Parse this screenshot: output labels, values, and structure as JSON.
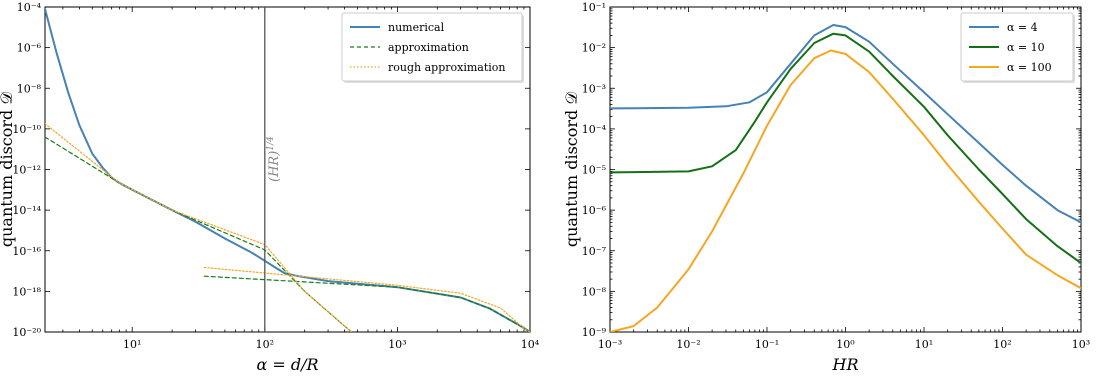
{
  "chart_data": [
    {
      "type": "line",
      "xlabel": "α = d/R",
      "ylabel": "quantum discord 𝒟",
      "xscale": "log",
      "yscale": "log",
      "xlim": [
        2.2,
        10000
      ],
      "ylim": [
        1e-20,
        0.0001
      ],
      "xticks": [
        {
          "value": 10,
          "label": "10¹"
        },
        {
          "value": 100,
          "label": "10²"
        },
        {
          "value": 1000,
          "label": "10³"
        },
        {
          "value": 10000,
          "label": "10⁴"
        }
      ],
      "yticks": [
        {
          "value": 0.0001,
          "label": "10⁻⁴"
        },
        {
          "value": 1e-06,
          "label": "10⁻⁶"
        },
        {
          "value": 1e-08,
          "label": "10⁻⁸"
        },
        {
          "value": 1e-10,
          "label": "10⁻¹⁰"
        },
        {
          "value": 1e-12,
          "label": "10⁻¹²"
        },
        {
          "value": 1e-14,
          "label": "10⁻¹⁴"
        },
        {
          "value": 1e-16,
          "label": "10⁻¹⁶"
        },
        {
          "value": 1e-18,
          "label": "10⁻¹⁸"
        },
        {
          "value": 1e-20,
          "label": "10⁻²⁰"
        }
      ],
      "legend_position": "top-right",
      "vline": {
        "x": 100,
        "label": "(HR)^1/4",
        "color": "#555555"
      },
      "series": [
        {
          "name": "numerical",
          "color": "#4682b4",
          "dash": "solid",
          "width": 2,
          "points": [
            [
              2.2,
              8e-05
            ],
            [
              2.7,
              5e-07
            ],
            [
              3.3,
              6e-09
            ],
            [
              4,
              1.5e-10
            ],
            [
              5,
              6e-12
            ],
            [
              6,
              1.2e-12
            ],
            [
              7,
              4e-13
            ],
            [
              8,
              2.2e-13
            ],
            [
              10,
              1e-13
            ],
            [
              20,
              1e-14
            ],
            [
              30,
              2.7e-15
            ],
            [
              50,
              4e-16
            ],
            [
              80,
              8e-17
            ],
            [
              100,
              3.2e-17
            ],
            [
              120,
              1.5e-17
            ],
            [
              140,
              8e-18
            ],
            [
              170,
              6e-18
            ],
            [
              300,
              3.2e-18
            ],
            [
              1000,
              1.6e-18
            ],
            [
              3000,
              5e-19
            ],
            [
              5000,
              1.4e-19
            ],
            [
              7000,
              4e-20
            ],
            [
              8500,
              2e-20
            ],
            [
              10000,
              1e-20
            ]
          ]
        },
        {
          "name": "approximation",
          "color": "#1a7a1a",
          "dash": "4,3",
          "width": 1.2,
          "segments": [
            [
              [
                2.2,
                4e-11
              ],
              [
                8,
                2.2e-13
              ],
              [
                20,
                1e-14
              ],
              [
                100,
                1.1e-16
              ],
              [
                200,
                1e-18
              ],
              [
                450,
                1e-20
              ]
            ],
            [
              [
                35,
                5.6e-18
              ],
              [
                1000,
                1.6e-18
              ],
              [
                3000,
                5e-19
              ],
              [
                5000,
                1.4e-19
              ],
              [
                7000,
                4e-20
              ],
              [
                10000,
                1e-20
              ]
            ]
          ]
        },
        {
          "name": "rough approximation",
          "color": "#f5a623",
          "dash": "1.5,2",
          "width": 1.2,
          "segments": [
            [
              [
                2.2,
                1.8e-10
              ],
              [
                8,
                2.2e-13
              ],
              [
                20,
                1e-14
              ],
              [
                100,
                2e-16
              ],
              [
                200,
                1e-18
              ],
              [
                450,
                1e-20
              ]
            ],
            [
              [
                35,
                1.5e-17
              ],
              [
                100,
                8e-18
              ],
              [
                1000,
                2e-18
              ],
              [
                3000,
                8e-19
              ],
              [
                6000,
                1.5e-19
              ],
              [
                9000,
                1.5e-20
              ],
              [
                10000,
                1e-20
              ]
            ]
          ]
        }
      ]
    },
    {
      "type": "line",
      "xlabel": "HR",
      "ylabel": "quantum discord 𝒟",
      "xscale": "log",
      "yscale": "log",
      "xlim": [
        0.001,
        1000
      ],
      "ylim": [
        1e-09,
        0.1
      ],
      "xticks": [
        {
          "value": 0.001,
          "label": "10⁻³"
        },
        {
          "value": 0.01,
          "label": "10⁻²"
        },
        {
          "value": 0.1,
          "label": "10⁻¹"
        },
        {
          "value": 1,
          "label": "10⁰"
        },
        {
          "value": 10,
          "label": "10¹"
        },
        {
          "value": 100,
          "label": "10²"
        },
        {
          "value": 1000,
          "label": "10³"
        }
      ],
      "yticks": [
        {
          "value": 0.1,
          "label": "10⁻¹"
        },
        {
          "value": 0.01,
          "label": "10⁻²"
        },
        {
          "value": 0.001,
          "label": "10⁻³"
        },
        {
          "value": 0.0001,
          "label": "10⁻⁴"
        },
        {
          "value": 1e-05,
          "label": "10⁻⁵"
        },
        {
          "value": 1e-06,
          "label": "10⁻⁶"
        },
        {
          "value": 1e-07,
          "label": "10⁻⁷"
        },
        {
          "value": 1e-08,
          "label": "10⁻⁸"
        },
        {
          "value": 1e-09,
          "label": "10⁻⁹"
        }
      ],
      "legend_position": "top-right",
      "series": [
        {
          "name": "α = 4",
          "color": "#4682b4",
          "dash": "solid",
          "width": 2,
          "points": [
            [
              0.001,
              0.00032
            ],
            [
              0.01,
              0.00033
            ],
            [
              0.03,
              0.00036
            ],
            [
              0.06,
              0.00045
            ],
            [
              0.1,
              0.0008
            ],
            [
              0.2,
              0.004
            ],
            [
              0.4,
              0.02
            ],
            [
              0.7,
              0.036
            ],
            [
              1,
              0.032
            ],
            [
              2,
              0.014
            ],
            [
              4,
              0.004
            ],
            [
              10,
              0.0008
            ],
            [
              20,
              0.00023
            ],
            [
              50,
              4.5e-05
            ],
            [
              100,
              1.3e-05
            ],
            [
              200,
              4e-06
            ],
            [
              500,
              1e-06
            ],
            [
              1000,
              5e-07
            ]
          ]
        },
        {
          "name": "α = 10",
          "color": "#157015",
          "dash": "solid",
          "width": 2,
          "points": [
            [
              0.001,
              8.5e-06
            ],
            [
              0.01,
              9e-06
            ],
            [
              0.02,
              1.2e-05
            ],
            [
              0.04,
              3e-05
            ],
            [
              0.07,
              0.00015
            ],
            [
              0.1,
              0.00045
            ],
            [
              0.2,
              0.003
            ],
            [
              0.4,
              0.013
            ],
            [
              0.7,
              0.022
            ],
            [
              1,
              0.02
            ],
            [
              2,
              0.008
            ],
            [
              4,
              0.002
            ],
            [
              10,
              0.00035
            ],
            [
              20,
              7e-05
            ],
            [
              50,
              1e-05
            ],
            [
              100,
              2.5e-06
            ],
            [
              200,
              6e-07
            ],
            [
              500,
              1.3e-07
            ],
            [
              1000,
              5e-08
            ]
          ]
        },
        {
          "name": "α = 100",
          "color": "#f5a623",
          "dash": "solid",
          "width": 2,
          "points": [
            [
              0.001,
              1e-09
            ],
            [
              0.002,
              1.4e-09
            ],
            [
              0.004,
              4e-09
            ],
            [
              0.007,
              1.5e-08
            ],
            [
              0.01,
              3.5e-08
            ],
            [
              0.02,
              3e-07
            ],
            [
              0.05,
              8e-06
            ],
            [
              0.1,
              0.00012
            ],
            [
              0.2,
              0.0012
            ],
            [
              0.4,
              0.0055
            ],
            [
              0.65,
              0.0085
            ],
            [
              1,
              0.007
            ],
            [
              2,
              0.0025
            ],
            [
              4,
              0.00055
            ],
            [
              10,
              7e-05
            ],
            [
              20,
              1.3e-05
            ],
            [
              50,
              1.6e-06
            ],
            [
              100,
              3.5e-07
            ],
            [
              200,
              8e-08
            ],
            [
              500,
              2.5e-08
            ],
            [
              1000,
              1.2e-08
            ]
          ]
        }
      ]
    }
  ]
}
